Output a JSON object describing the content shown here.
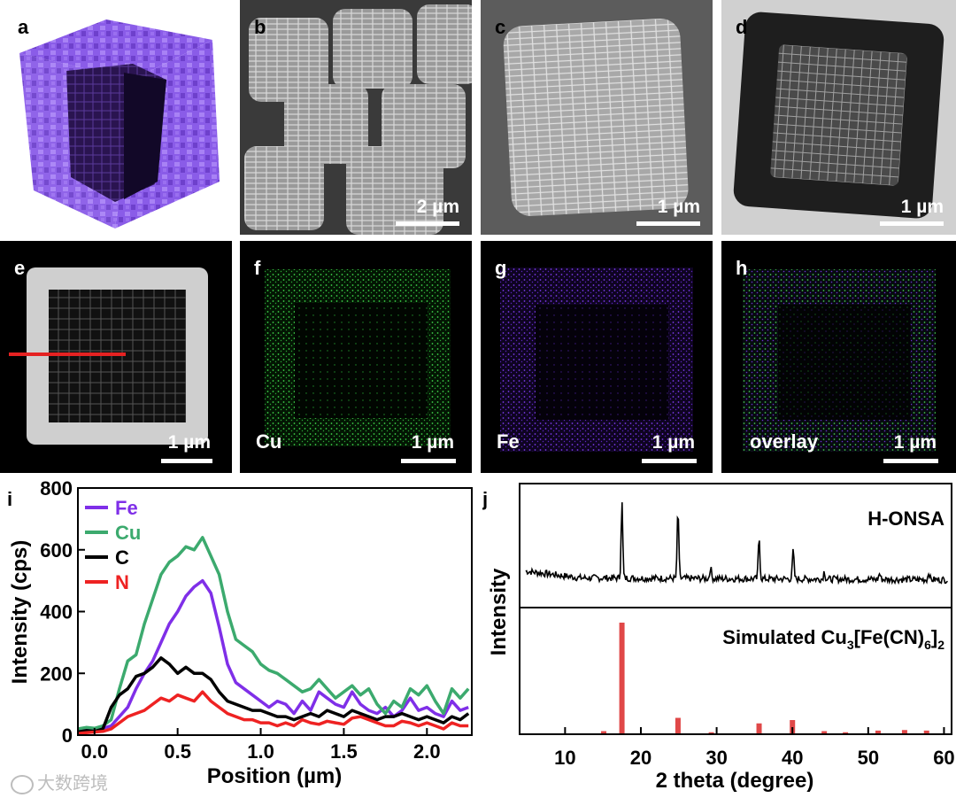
{
  "panels": {
    "a": {
      "label": "a"
    },
    "b": {
      "label": "b",
      "scale": "2 µm"
    },
    "c": {
      "label": "c",
      "scale": "1 µm"
    },
    "d": {
      "label": "d",
      "scale": "1 µm"
    },
    "e": {
      "label": "e",
      "scale": "1 µm"
    },
    "f": {
      "label": "f",
      "element": "Cu",
      "scale": "1 µm"
    },
    "g": {
      "label": "g",
      "element": "Fe",
      "scale": "1 µm"
    },
    "h": {
      "label": "h",
      "element": "overlay",
      "scale": "1 µm"
    },
    "i": {
      "label": "i"
    },
    "j": {
      "label": "j"
    }
  },
  "colors": {
    "Fe": "#7f2fe8",
    "Cu": "#3caa6e",
    "C": "#000000",
    "N": "#ee2222",
    "sim_bars": "#e04848"
  },
  "watermark": "大数跨境",
  "chart_data": [
    {
      "type": "line",
      "panel": "i",
      "xlabel": "Position (µm)",
      "ylabel": "Intensity (cps)",
      "xlim": [
        -0.1,
        2.27
      ],
      "ylim": [
        0,
        800
      ],
      "xticks": [
        "0.0",
        "0.5",
        "1.0",
        "1.5",
        "2.0"
      ],
      "yticks": [
        "0",
        "200",
        "400",
        "600",
        "800"
      ],
      "legend_position": "top-left",
      "x": [
        -0.1,
        -0.05,
        0.0,
        0.05,
        0.1,
        0.15,
        0.2,
        0.25,
        0.3,
        0.35,
        0.4,
        0.45,
        0.5,
        0.55,
        0.6,
        0.65,
        0.7,
        0.75,
        0.8,
        0.85,
        0.9,
        0.95,
        1.0,
        1.05,
        1.1,
        1.15,
        1.2,
        1.25,
        1.3,
        1.35,
        1.4,
        1.45,
        1.5,
        1.55,
        1.6,
        1.65,
        1.7,
        1.75,
        1.8,
        1.85,
        1.9,
        1.95,
        2.0,
        2.05,
        2.1,
        2.15,
        2.2,
        2.25
      ],
      "series": [
        {
          "name": "Fe",
          "values": [
            15,
            20,
            18,
            22,
            30,
            60,
            90,
            150,
            200,
            240,
            300,
            360,
            400,
            450,
            480,
            500,
            460,
            350,
            230,
            170,
            150,
            130,
            110,
            90,
            110,
            100,
            70,
            110,
            80,
            140,
            120,
            100,
            90,
            140,
            100,
            80,
            70,
            90,
            60,
            80,
            120,
            80,
            90,
            70,
            60,
            110,
            80,
            90
          ]
        },
        {
          "name": "Cu",
          "values": [
            20,
            25,
            22,
            30,
            50,
            150,
            240,
            260,
            360,
            440,
            520,
            560,
            580,
            610,
            600,
            640,
            580,
            520,
            400,
            310,
            290,
            270,
            230,
            210,
            200,
            180,
            160,
            140,
            150,
            180,
            150,
            120,
            140,
            160,
            130,
            150,
            100,
            70,
            110,
            90,
            150,
            130,
            160,
            110,
            70,
            150,
            120,
            150
          ]
        },
        {
          "name": "C",
          "values": [
            10,
            15,
            12,
            20,
            90,
            130,
            150,
            190,
            200,
            220,
            250,
            230,
            200,
            220,
            200,
            200,
            180,
            140,
            110,
            100,
            90,
            80,
            80,
            70,
            60,
            60,
            50,
            60,
            70,
            60,
            80,
            70,
            60,
            80,
            70,
            60,
            50,
            60,
            60,
            70,
            60,
            50,
            60,
            50,
            40,
            60,
            50,
            70
          ]
        },
        {
          "name": "N",
          "values": [
            5,
            8,
            10,
            12,
            20,
            40,
            60,
            70,
            80,
            100,
            120,
            110,
            130,
            120,
            110,
            140,
            110,
            90,
            70,
            60,
            50,
            50,
            40,
            40,
            30,
            40,
            30,
            50,
            40,
            35,
            45,
            40,
            35,
            55,
            60,
            50,
            40,
            30,
            30,
            45,
            40,
            30,
            40,
            30,
            20,
            40,
            30,
            30
          ]
        }
      ]
    },
    {
      "type": "line",
      "panel": "j",
      "xlabel": "2 theta (degree)",
      "ylabel": "Intensity",
      "xlim": [
        4,
        61
      ],
      "xticks": [
        "10",
        "20",
        "30",
        "40",
        "50",
        "60"
      ],
      "series": [
        {
          "name": "H-ONSA",
          "peaks": [
            [
              17.5,
              1.0
            ],
            [
              24.9,
              0.92
            ],
            [
              29.2,
              0.15
            ],
            [
              35.6,
              0.55
            ],
            [
              40.1,
              0.38
            ],
            [
              44.2,
              0.1
            ],
            [
              51.5,
              0.08
            ],
            [
              58.0,
              0.1
            ]
          ]
        },
        {
          "name": "Simulated Cu3[Fe(CN)6]2",
          "label_main": "Simulated Cu",
          "label_sub1": "3",
          "label_mid": "[Fe(CN)",
          "label_sub2": "6",
          "label_end": "]",
          "label_sub3": "2",
          "bars": [
            [
              15.1,
              0.02
            ],
            [
              17.5,
              1.0
            ],
            [
              24.9,
              0.14
            ],
            [
              29.3,
              0.01
            ],
            [
              35.6,
              0.09
            ],
            [
              40.0,
              0.12
            ],
            [
              44.2,
              0.02
            ],
            [
              47.0,
              0.01
            ],
            [
              51.3,
              0.025
            ],
            [
              54.8,
              0.03
            ],
            [
              57.7,
              0.025
            ]
          ]
        }
      ]
    }
  ]
}
